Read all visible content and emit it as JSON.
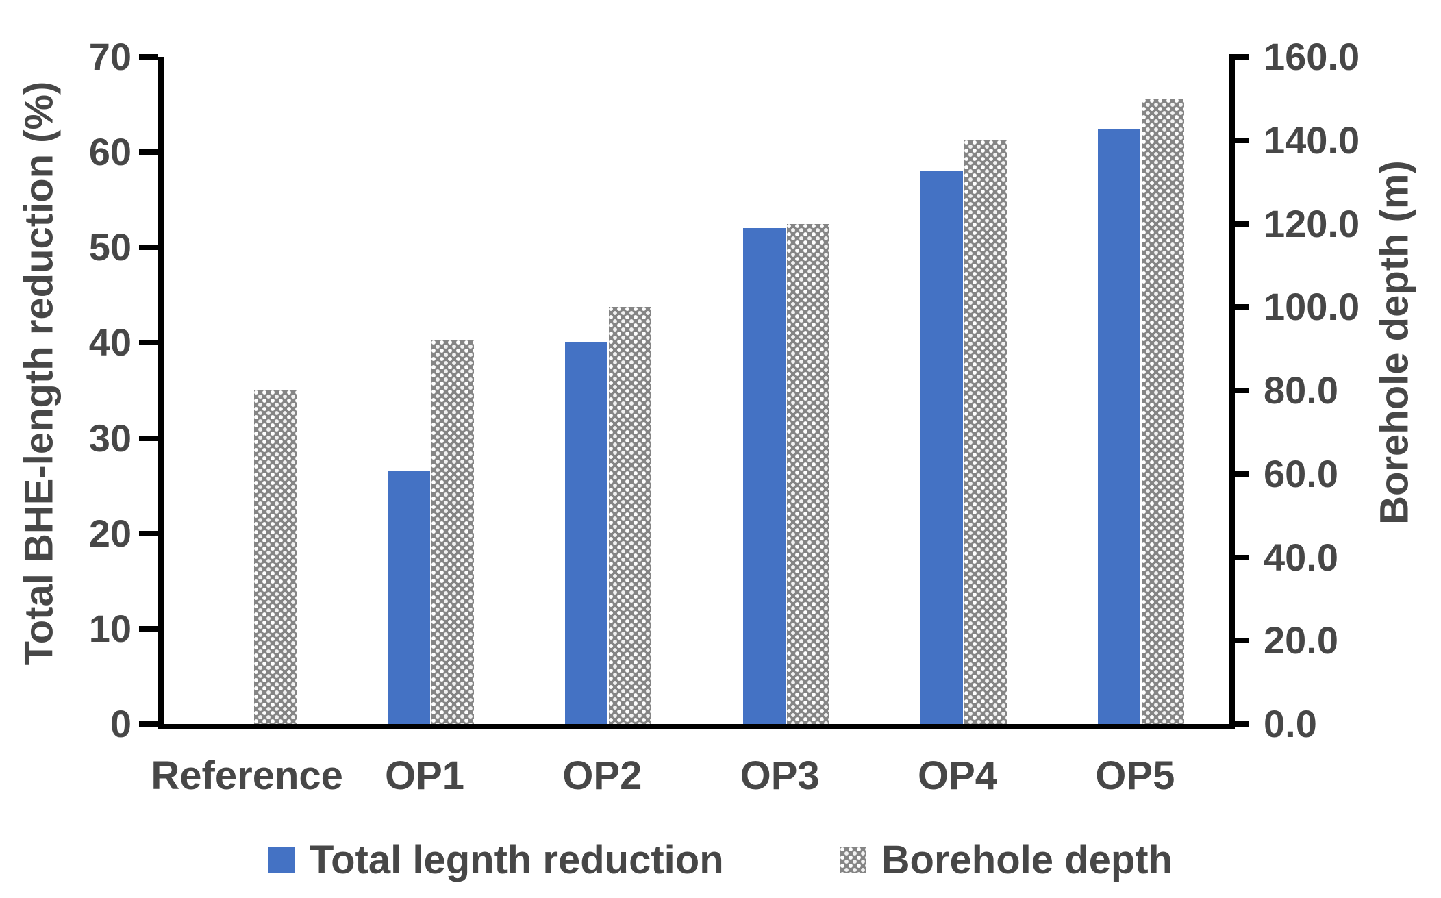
{
  "chart_data": {
    "type": "bar",
    "title": "",
    "categories": [
      "Reference",
      "OP1",
      "OP2",
      "OP3",
      "OP4",
      "OP5"
    ],
    "series": [
      {
        "name": "Total legnth reduction",
        "axis": "left",
        "color": "#4472C4",
        "style": "solid",
        "values": [
          0,
          26.6,
          40.0,
          52.0,
          58.0,
          62.4
        ]
      },
      {
        "name": "Borehole depth",
        "axis": "right",
        "color": "#858585",
        "style": "dotted-pattern",
        "values": [
          80.0,
          92.0,
          100.0,
          120.0,
          140.0,
          150.0
        ]
      }
    ],
    "left_axis": {
      "label": "Total BHE-length reduction (%)",
      "min": 0,
      "max": 70,
      "tick_step": 10,
      "ticks": [
        "0",
        "10",
        "20",
        "30",
        "40",
        "50",
        "60",
        "70"
      ]
    },
    "right_axis": {
      "label": "Borehole depth (m)",
      "min": 0,
      "max": 160,
      "tick_step": 20,
      "ticks": [
        "0.0",
        "20.0",
        "40.0",
        "60.0",
        "80.0",
        "100.0",
        "120.0",
        "140.0",
        "160.0"
      ]
    },
    "legend_position": "bottom",
    "grid": false
  },
  "colors": {
    "bar_blue": "#4472C4",
    "bar_gray": "#858585",
    "axis_line": "#000000",
    "text": "#474747",
    "background": "#FFFFFF"
  }
}
